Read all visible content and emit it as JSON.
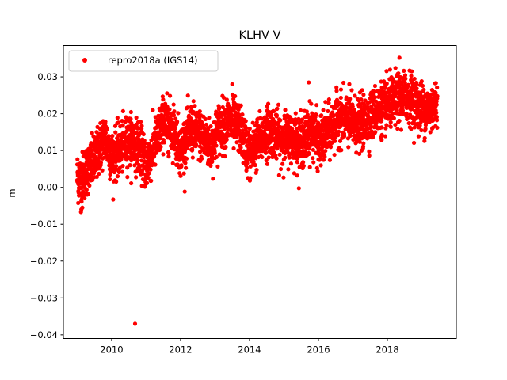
{
  "chart_data": {
    "type": "scatter",
    "title": "KLHV V",
    "xlabel": "",
    "ylabel": "m",
    "xlim": [
      2008.6,
      2020.0
    ],
    "ylim": [
      -0.041,
      0.0385
    ],
    "xticks": [
      2010,
      2012,
      2014,
      2016,
      2018
    ],
    "xtick_labels": [
      "2010",
      "2012",
      "2014",
      "2016",
      "2018"
    ],
    "yticks": [
      -0.04,
      -0.03,
      -0.02,
      -0.01,
      0.0,
      0.01,
      0.02,
      0.03
    ],
    "ytick_labels": [
      "−0.04",
      "−0.03",
      "−0.02",
      "−0.01",
      "0.00",
      "0.01",
      "0.02",
      "0.03"
    ],
    "grid": false,
    "legend_position": "top-left",
    "series": [
      {
        "name": "repro2018a (IGS14)",
        "color": "#ff0000",
        "marker": "circle",
        "time_range": [
          2009.0,
          2019.45
        ],
        "trend_points": {
          "x": [
            2009.0,
            2009.1,
            2009.3,
            2009.5,
            2009.8,
            2010.0,
            2010.2,
            2010.5,
            2010.8,
            2011.0,
            2011.2,
            2011.5,
            2011.8,
            2012.0,
            2012.3,
            2012.6,
            2012.9,
            2013.1,
            2013.4,
            2013.7,
            2014.0,
            2014.3,
            2014.6,
            2014.9,
            2015.2,
            2015.5,
            2015.8,
            2016.0,
            2016.3,
            2016.6,
            2016.9,
            2017.1,
            2017.4,
            2017.7,
            2018.0,
            2018.3,
            2018.6,
            2018.9,
            2019.2,
            2019.45
          ],
          "y": [
            0.003,
            0.002,
            0.005,
            0.007,
            0.014,
            0.008,
            0.01,
            0.013,
            0.011,
            0.006,
            0.01,
            0.018,
            0.016,
            0.01,
            0.016,
            0.014,
            0.011,
            0.016,
            0.018,
            0.016,
            0.009,
            0.013,
            0.016,
            0.013,
            0.014,
            0.012,
            0.016,
            0.012,
            0.015,
            0.019,
            0.018,
            0.017,
            0.018,
            0.021,
            0.022,
            0.024,
            0.025,
            0.022,
            0.021,
            0.023
          ]
        },
        "scatter_spread": 0.0045,
        "point_count": 3500,
        "outliers": [
          {
            "x": 2010.68,
            "y": -0.037
          },
          {
            "x": 2009.12,
            "y": -0.006
          },
          {
            "x": 2009.15,
            "y": -0.0055
          },
          {
            "x": 2018.35,
            "y": 0.0352
          },
          {
            "x": 2013.5,
            "y": 0.028
          },
          {
            "x": 2015.72,
            "y": 0.0285
          }
        ]
      }
    ]
  }
}
